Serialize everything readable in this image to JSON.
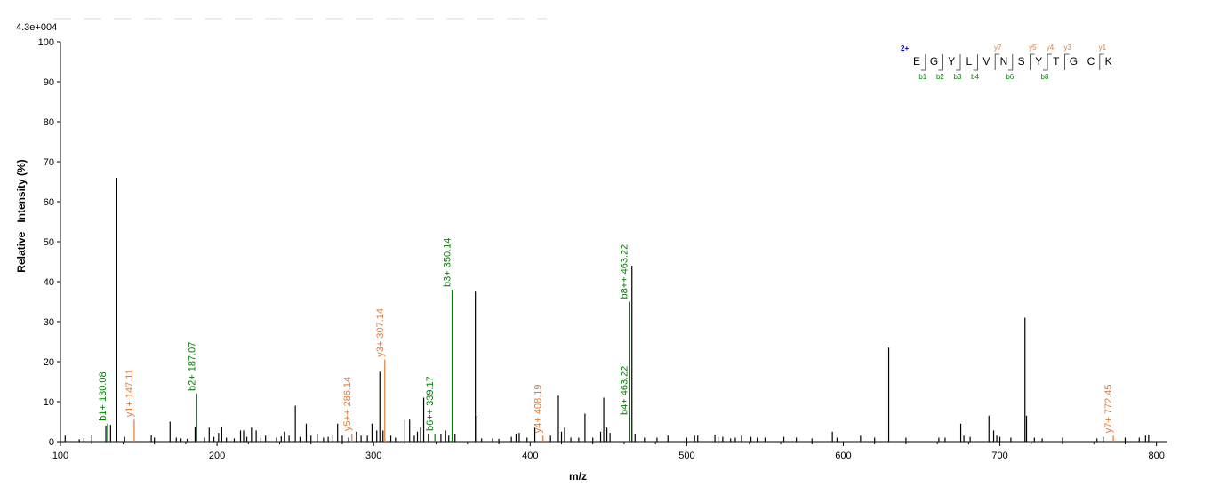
{
  "chart_data": {
    "type": "bar",
    "subtype": "mass-spectrum",
    "scale_label": "4.3e+004",
    "xlabel": "m/z",
    "ylabel": "Relative   Intensity (%)",
    "xlim": [
      100,
      807
    ],
    "ylim": [
      0,
      100
    ],
    "xticks": [
      100,
      200,
      300,
      400,
      500,
      600,
      700,
      800
    ],
    "yticks": [
      0,
      10,
      20,
      30,
      40,
      50,
      60,
      70,
      80,
      90,
      100
    ],
    "colors": {
      "b_ion": "#008000",
      "y_ion": "#e07b39",
      "unannotated": "#000000",
      "charge": "#0000c0"
    },
    "annotated_peaks": [
      {
        "mz": 130.08,
        "intensity": 4.5,
        "ion": "b",
        "label": "b1+ 130.08"
      },
      {
        "mz": 147.11,
        "intensity": 5.5,
        "ion": "y",
        "label": "y1+ 147.11"
      },
      {
        "mz": 187.07,
        "intensity": 12.0,
        "ion": "b",
        "label": "b2+ 187.07"
      },
      {
        "mz": 286.14,
        "intensity": 2.0,
        "ion": "y",
        "label": "y5++ 286.14"
      },
      {
        "mz": 307.14,
        "intensity": 20.5,
        "ion": "y",
        "label": "y3+ 307.14"
      },
      {
        "mz": 339.17,
        "intensity": 2.0,
        "ion": "b",
        "label": "b6++ 339.17"
      },
      {
        "mz": 350.14,
        "intensity": 38.0,
        "ion": "b",
        "label": "b3+ 350.14"
      },
      {
        "mz": 408.19,
        "intensity": 1.5,
        "ion": "y",
        "label": "y4+ 408.19"
      },
      {
        "mz": 463.22,
        "intensity": 6.0,
        "ion": "b",
        "label": "b4+ 463.22"
      },
      {
        "mz": 463.22,
        "intensity": 35.0,
        "ion": "b",
        "label": "b8++ 463.22"
      },
      {
        "mz": 772.45,
        "intensity": 1.5,
        "ion": "y",
        "label": "y7+ 772.45"
      }
    ],
    "peaks": [
      [
        103,
        1.5
      ],
      [
        112,
        0.6
      ],
      [
        115,
        0.9
      ],
      [
        120,
        1.8
      ],
      [
        129,
        4.0
      ],
      [
        132,
        4.2
      ],
      [
        136,
        66.0
      ],
      [
        141,
        1.2
      ],
      [
        158,
        1.6
      ],
      [
        160,
        1.0
      ],
      [
        170,
        5.0
      ],
      [
        174,
        1.0
      ],
      [
        177,
        0.8
      ],
      [
        181,
        0.7
      ],
      [
        186,
        3.8
      ],
      [
        192,
        1.0
      ],
      [
        195,
        3.5
      ],
      [
        198,
        1.2
      ],
      [
        201,
        2.2
      ],
      [
        203,
        3.8
      ],
      [
        206,
        1.0
      ],
      [
        211,
        0.8
      ],
      [
        215,
        2.8
      ],
      [
        217,
        2.8
      ],
      [
        219,
        1.2
      ],
      [
        222,
        3.5
      ],
      [
        225,
        2.8
      ],
      [
        228,
        1.0
      ],
      [
        231,
        1.5
      ],
      [
        238,
        1.0
      ],
      [
        241,
        1.3
      ],
      [
        243,
        2.5
      ],
      [
        246,
        1.5
      ],
      [
        250,
        9.0
      ],
      [
        253,
        1.2
      ],
      [
        257,
        4.5
      ],
      [
        260,
        1.5
      ],
      [
        264,
        2.0
      ],
      [
        268,
        1.0
      ],
      [
        271,
        1.2
      ],
      [
        274,
        1.8
      ],
      [
        277,
        4.5
      ],
      [
        280,
        1.5
      ],
      [
        284,
        1.0
      ],
      [
        289,
        2.5
      ],
      [
        292,
        1.5
      ],
      [
        296,
        1.5
      ],
      [
        299,
        4.5
      ],
      [
        302,
        2.8
      ],
      [
        304,
        17.5
      ],
      [
        306,
        2.8
      ],
      [
        311,
        1.5
      ],
      [
        314,
        1.0
      ],
      [
        320,
        5.5
      ],
      [
        323,
        5.5
      ],
      [
        326,
        1.5
      ],
      [
        328,
        2.5
      ],
      [
        330,
        3.5
      ],
      [
        332,
        11.0
      ],
      [
        335,
        2.0
      ],
      [
        343,
        2.0
      ],
      [
        346,
        2.8
      ],
      [
        348,
        1.5
      ],
      [
        352,
        2.0
      ],
      [
        365,
        37.5
      ],
      [
        366,
        6.5
      ],
      [
        369,
        0.8
      ],
      [
        376,
        0.8
      ],
      [
        380,
        0.7
      ],
      [
        388,
        1.2
      ],
      [
        391,
        2.0
      ],
      [
        393,
        2.2
      ],
      [
        398,
        1.0
      ],
      [
        403,
        3.5
      ],
      [
        413,
        1.5
      ],
      [
        418,
        11.5
      ],
      [
        420,
        2.5
      ],
      [
        422,
        3.5
      ],
      [
        426,
        1.0
      ],
      [
        431,
        1.0
      ],
      [
        435,
        7.0
      ],
      [
        440,
        1.0
      ],
      [
        445,
        2.5
      ],
      [
        447,
        11.0
      ],
      [
        449,
        3.5
      ],
      [
        451,
        2.2
      ],
      [
        465,
        44.0
      ],
      [
        467,
        2.0
      ],
      [
        473,
        1.0
      ],
      [
        481,
        1.0
      ],
      [
        488,
        1.5
      ],
      [
        500,
        1.0
      ],
      [
        505,
        1.5
      ],
      [
        507,
        1.5
      ],
      [
        518,
        1.8
      ],
      [
        520,
        1.2
      ],
      [
        523,
        1.2
      ],
      [
        528,
        0.8
      ],
      [
        531,
        1.0
      ],
      [
        535,
        1.5
      ],
      [
        541,
        1.2
      ],
      [
        545,
        1.0
      ],
      [
        550,
        1.0
      ],
      [
        562,
        1.2
      ],
      [
        570,
        1.0
      ],
      [
        580,
        0.8
      ],
      [
        593,
        2.5
      ],
      [
        596,
        1.0
      ],
      [
        611,
        1.5
      ],
      [
        620,
        1.0
      ],
      [
        629,
        23.5
      ],
      [
        640,
        1.0
      ],
      [
        661,
        1.0
      ],
      [
        665,
        1.0
      ],
      [
        675,
        4.5
      ],
      [
        677,
        1.5
      ],
      [
        681,
        1.2
      ],
      [
        693,
        6.5
      ],
      [
        696,
        2.8
      ],
      [
        698,
        1.5
      ],
      [
        700,
        1.2
      ],
      [
        707,
        1.0
      ],
      [
        716,
        31.0
      ],
      [
        717,
        6.5
      ],
      [
        722,
        1.0
      ],
      [
        727,
        0.8
      ],
      [
        740,
        1.0
      ],
      [
        762,
        0.8
      ],
      [
        766,
        1.2
      ],
      [
        780,
        1.0
      ],
      [
        789,
        1.0
      ],
      [
        793,
        1.5
      ],
      [
        795,
        1.8
      ]
    ]
  },
  "peptide": {
    "charge": "2+",
    "residues": [
      "E",
      "G",
      "Y",
      "L",
      "V",
      "N",
      "S",
      "Y",
      "T",
      "G",
      "C",
      "K"
    ],
    "b_ions": [
      {
        "after": 1,
        "label": "b1"
      },
      {
        "after": 2,
        "label": "b2"
      },
      {
        "after": 3,
        "label": "b3"
      },
      {
        "after": 4,
        "label": "b4"
      },
      {
        "after": 6,
        "label": "b6"
      },
      {
        "after": 8,
        "label": "b8"
      }
    ],
    "y_ions": [
      {
        "after": 5,
        "label": "y7"
      },
      {
        "after": 7,
        "label": "y5"
      },
      {
        "after": 8,
        "label": "y4"
      },
      {
        "after": 9,
        "label": "y3"
      },
      {
        "after": 11,
        "label": "y1"
      }
    ]
  }
}
